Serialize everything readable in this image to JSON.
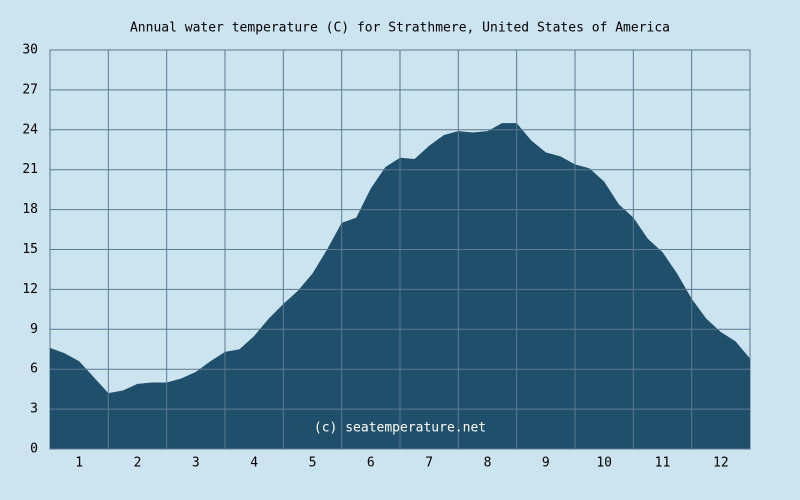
{
  "chart_data": {
    "type": "area",
    "title": "Annual water temperature (C) for Strathmere, United States of America",
    "annotation": "(c) seatemperature.net",
    "categories": [
      "1",
      "2",
      "3",
      "4",
      "5",
      "6",
      "7",
      "8",
      "9",
      "10",
      "11",
      "12"
    ],
    "x": [
      0,
      0.25,
      0.5,
      0.75,
      1,
      1.25,
      1.5,
      1.75,
      2,
      2.25,
      2.5,
      2.75,
      3,
      3.25,
      3.5,
      3.75,
      4,
      4.25,
      4.5,
      4.75,
      5,
      5.25,
      5.5,
      5.75,
      6,
      6.25,
      6.5,
      6.75,
      7,
      7.25,
      7.5,
      7.75,
      8,
      8.25,
      8.5,
      8.75,
      9,
      9.25,
      9.5,
      9.75,
      10,
      10.25,
      10.5,
      10.75,
      11,
      11.25,
      11.5,
      11.75,
      12
    ],
    "values": [
      7.6,
      7.2,
      6.6,
      5.4,
      4.2,
      4.4,
      4.9,
      5.0,
      5.0,
      5.3,
      5.8,
      6.6,
      7.3,
      7.5,
      8.5,
      9.8,
      10.9,
      11.9,
      13.2,
      15.0,
      17.0,
      17.4,
      19.6,
      21.2,
      21.9,
      21.8,
      22.8,
      23.6,
      23.9,
      23.8,
      23.9,
      24.5,
      24.5,
      23.2,
      22.3,
      22.0,
      21.4,
      21.1,
      20.1,
      18.4,
      17.4,
      15.8,
      14.8,
      13.2,
      11.3,
      9.8,
      8.8,
      8.1,
      6.8
    ],
    "color": "#1f4f6a",
    "xlim": [
      0,
      12
    ],
    "ylim": [
      0,
      30
    ],
    "yticks": [
      0,
      3,
      6,
      9,
      12,
      15,
      18,
      21,
      24,
      27,
      30
    ],
    "grid": true
  }
}
